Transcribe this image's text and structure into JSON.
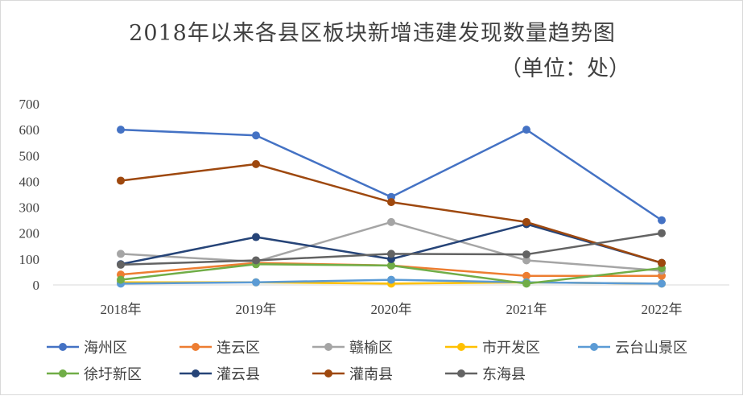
{
  "chart_data": {
    "type": "line",
    "title": "2018年以来各县区板块新增违建发现数量趋势图",
    "subtitle": "（单位：处）",
    "xlabel": "",
    "ylabel": "",
    "categories": [
      "2018年",
      "2019年",
      "2020年",
      "2021年",
      "2022年"
    ],
    "ylim": [
      0,
      700
    ],
    "yticks": [
      0,
      100,
      200,
      300,
      400,
      500,
      600,
      700
    ],
    "grid": false,
    "legend_position": "bottom",
    "series": [
      {
        "name": "海州区",
        "color": "#4472C4",
        "values": [
          600,
          578,
          340,
          600,
          250
        ]
      },
      {
        "name": "连云区",
        "color": "#ED7D31",
        "values": [
          40,
          85,
          75,
          35,
          35
        ]
      },
      {
        "name": "赣榆区",
        "color": "#A5A5A5",
        "values": [
          120,
          90,
          243,
          95,
          55
        ]
      },
      {
        "name": "市开发区",
        "color": "#FFC000",
        "values": [
          10,
          10,
          5,
          10,
          5
        ]
      },
      {
        "name": "云台山景区",
        "color": "#5B9BD5",
        "values": [
          5,
          10,
          20,
          10,
          5
        ]
      },
      {
        "name": "徐圩新区",
        "color": "#70AD47",
        "values": [
          20,
          80,
          75,
          5,
          65
        ]
      },
      {
        "name": "灌云县",
        "color": "#264478",
        "values": [
          80,
          185,
          100,
          235,
          85
        ]
      },
      {
        "name": "灌南县",
        "color": "#9E480E",
        "values": [
          403,
          467,
          320,
          243,
          85
        ]
      },
      {
        "name": "东海县",
        "color": "#636363",
        "values": [
          78,
          95,
          120,
          118,
          200
        ]
      }
    ]
  }
}
